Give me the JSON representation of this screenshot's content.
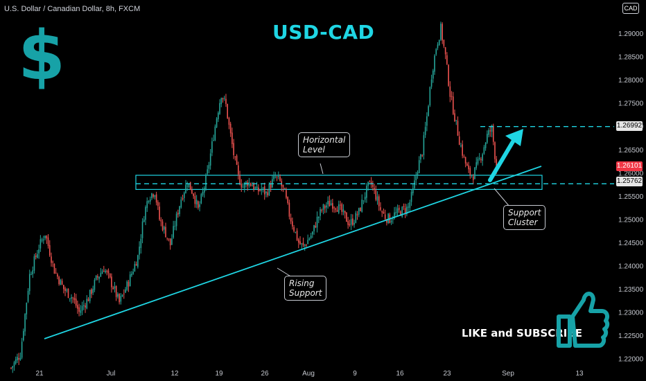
{
  "header": {
    "symbol_line": "U.S. Dollar / Canadian Dollar, 8h, FXCM",
    "currency_badge": "CAD"
  },
  "title": "USD-CAD",
  "logo": {
    "glyph": "$",
    "icon": "dollar-sign-icon",
    "color": "#17a2a7"
  },
  "annotations": {
    "horizontal_level": [
      "Horizontal",
      "Level"
    ],
    "rising_support": [
      "Rising",
      "Support"
    ],
    "support_cluster": [
      "Support",
      "Cluster"
    ]
  },
  "cta": {
    "text": "LIKE and SUBSCRIBE",
    "icon": "thumbs-up-icon"
  },
  "price_labels": {
    "target": "1.26992",
    "last": "1.26101",
    "support": "1.25762"
  },
  "colors": {
    "up": "#26a69a",
    "down": "#ef5350",
    "accent": "#1fd6e4",
    "last_price": "#f23645"
  },
  "chart_data": {
    "type": "candlestick",
    "title": "USD-CAD",
    "yaxis": {
      "ticks": [
        "1.29000",
        "1.28500",
        "1.28000",
        "1.27500",
        "1.27000",
        "1.26500",
        "1.26000",
        "1.25500",
        "1.25000",
        "1.24500",
        "1.24000",
        "1.23500",
        "1.23000",
        "1.22500",
        "1.22000"
      ],
      "range": [
        1.2173,
        1.2985
      ]
    },
    "xaxis": {
      "ticks": [
        "21",
        "Jul",
        "12",
        "19",
        "26",
        "Aug",
        "9",
        "16",
        "23",
        "Sep",
        "13"
      ]
    },
    "path": [
      [
        0,
        1.218
      ],
      [
        6,
        1.221
      ],
      [
        12,
        1.238
      ],
      [
        18,
        1.244
      ],
      [
        22,
        1.247
      ],
      [
        28,
        1.239
      ],
      [
        34,
        1.235
      ],
      [
        40,
        1.233
      ],
      [
        44,
        1.23
      ],
      [
        50,
        1.233
      ],
      [
        55,
        1.237
      ],
      [
        60,
        1.2395
      ],
      [
        66,
        1.2355
      ],
      [
        70,
        1.232
      ],
      [
        76,
        1.2365
      ],
      [
        82,
        1.242
      ],
      [
        86,
        1.251
      ],
      [
        89,
        1.255
      ],
      [
        93,
        1.256
      ],
      [
        96,
        1.25
      ],
      [
        100,
        1.247
      ],
      [
        103,
        1.2445
      ],
      [
        106,
        1.249
      ],
      [
        110,
        1.2545
      ],
      [
        114,
        1.258
      ],
      [
        118,
        1.2555
      ],
      [
        121,
        1.252
      ],
      [
        124,
        1.2555
      ],
      [
        127,
        1.26
      ],
      [
        130,
        1.266
      ],
      [
        133,
        1.272
      ],
      [
        136,
        1.277
      ],
      [
        139,
        1.2745
      ],
      [
        141,
        1.27
      ],
      [
        144,
        1.264
      ],
      [
        147,
        1.259
      ],
      [
        150,
        1.257
      ],
      [
        153,
        1.258
      ],
      [
        156,
        1.2575
      ],
      [
        159,
        1.256
      ],
      [
        162,
        1.2565
      ],
      [
        165,
        1.2555
      ],
      [
        168,
        1.2575
      ],
      [
        171,
        1.259
      ],
      [
        174,
        1.258
      ],
      [
        177,
        1.2555
      ],
      [
        180,
        1.251
      ],
      [
        183,
        1.248
      ],
      [
        186,
        1.245
      ],
      [
        189,
        1.244
      ],
      [
        192,
        1.2455
      ],
      [
        195,
        1.247
      ],
      [
        198,
        1.25
      ],
      [
        201,
        1.252
      ],
      [
        204,
        1.253
      ],
      [
        207,
        1.2535
      ],
      [
        210,
        1.253
      ],
      [
        213,
        1.252
      ],
      [
        216,
        1.2505
      ],
      [
        219,
        1.249
      ],
      [
        222,
        1.25
      ],
      [
        225,
        1.2515
      ],
      [
        228,
        1.2545
      ],
      [
        231,
        1.257
      ],
      [
        233,
        1.2575
      ],
      [
        236,
        1.255
      ],
      [
        239,
        1.252
      ],
      [
        242,
        1.2505
      ],
      [
        245,
        1.25
      ],
      [
        248,
        1.251
      ],
      [
        251,
        1.2515
      ],
      [
        254,
        1.252
      ],
      [
        257,
        1.2525
      ],
      [
        260,
        1.256
      ],
      [
        263,
        1.261
      ],
      [
        266,
        1.2645
      ],
      [
        269,
        1.272
      ],
      [
        272,
        1.281
      ],
      [
        275,
        1.287
      ],
      [
        278,
        1.291
      ],
      [
        281,
        1.285
      ],
      [
        284,
        1.277
      ],
      [
        287,
        1.272
      ],
      [
        290,
        1.267
      ],
      [
        293,
        1.263
      ],
      [
        296,
        1.26
      ],
      [
        299,
        1.2595
      ],
      [
        302,
        1.262
      ],
      [
        305,
        1.2645
      ],
      [
        308,
        1.268
      ],
      [
        311,
        1.2695
      ],
      [
        314,
        1.261
      ]
    ],
    "levels": [
      1.26992,
      1.25762
    ],
    "support_zone": [
      1.257,
      1.259
    ],
    "rising_trendline": [
      [
        "Jun 16",
        1.2236
      ],
      [
        "Aug 30",
        1.261
      ]
    ]
  }
}
